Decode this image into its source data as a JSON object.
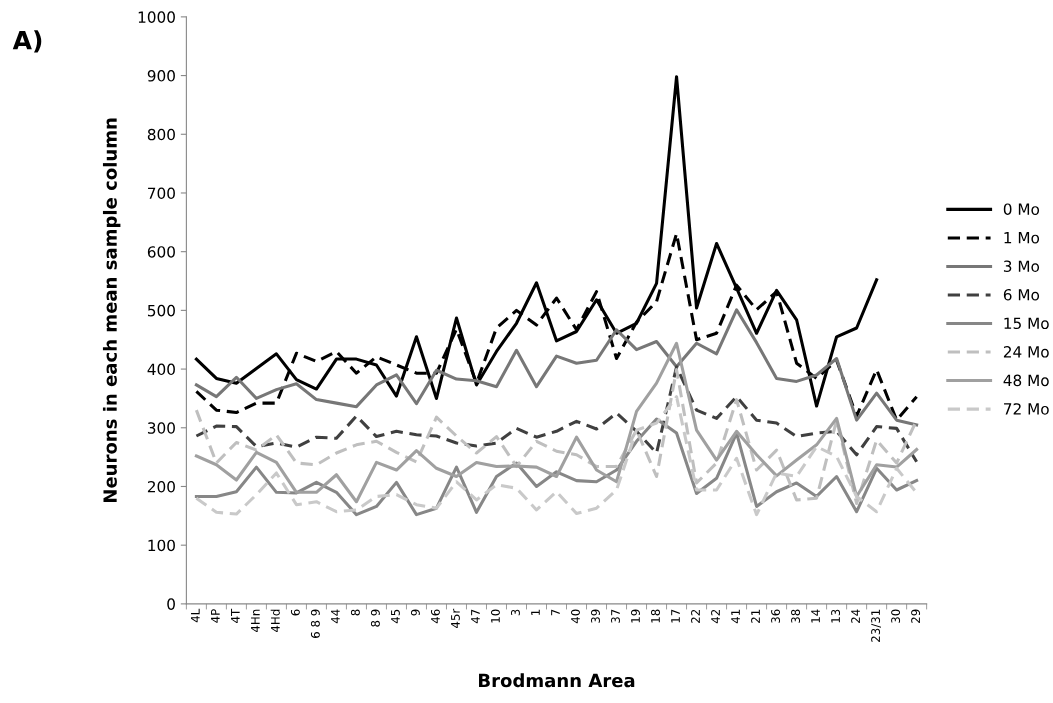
{
  "chart_data": {
    "type": "line",
    "xlabel": "Brodmann Area",
    "ylabel": "Neurons in each mean sample column",
    "annotations": [
      "A)"
    ],
    "categories": [
      "4L",
      "4P",
      "4T",
      "4Hn",
      "4Hd",
      "6",
      "6 8 9",
      "44",
      "8",
      "8 9",
      "45",
      "9",
      "46",
      "45r",
      "47",
      "10",
      "3",
      "1",
      "7",
      "40",
      "39",
      "37",
      "19",
      "18",
      "17",
      "22",
      "42",
      "41",
      "21",
      "36",
      "38",
      "14",
      "13",
      "24",
      "23/31",
      "30",
      "29"
    ],
    "ylim": [
      0,
      1000
    ],
    "yticks": [
      0,
      100,
      200,
      300,
      400,
      500,
      600,
      700,
      800,
      900,
      1000
    ],
    "grid": false,
    "legend": "right",
    "marker": "none",
    "series": [
      {
        "name": "0 Mo",
        "color": "#000000",
        "line_style": "solid",
        "values": [
          417,
          384,
          376,
          401,
          426,
          382,
          366,
          417,
          417,
          407,
          354,
          455,
          350,
          487,
          373,
          430,
          478,
          547,
          448,
          464,
          518,
          461,
          478,
          546,
          898,
          504,
          614,
          538,
          461,
          534,
          484,
          337,
          455,
          470,
          552,
          null,
          null
        ]
      },
      {
        "name": "1 Mo",
        "color": "#000000",
        "line_style": "dashed",
        "values": [
          362,
          330,
          326,
          342,
          342,
          427,
          413,
          430,
          393,
          421,
          407,
          393,
          393,
          468,
          376,
          470,
          500,
          475,
          521,
          467,
          532,
          418,
          480,
          515,
          631,
          450,
          461,
          543,
          501,
          532,
          410,
          384,
          415,
          320,
          399,
          313,
          353
        ]
      },
      {
        "name": "3 Mo",
        "color": "#777777",
        "line_style": "solid",
        "values": [
          373,
          353,
          386,
          350,
          365,
          375,
          348,
          342,
          336,
          373,
          390,
          341,
          398,
          383,
          380,
          370,
          432,
          370,
          422,
          410,
          415,
          467,
          433,
          447,
          404,
          444,
          426,
          501,
          445,
          384,
          379,
          390,
          418,
          313,
          359,
          313,
          305
        ]
      },
      {
        "name": "6 Mo",
        "color": "#404040",
        "line_style": "dashed",
        "values": [
          286,
          303,
          302,
          268,
          274,
          267,
          284,
          282,
          320,
          285,
          294,
          288,
          286,
          274,
          269,
          274,
          299,
          284,
          294,
          311,
          298,
          325,
          294,
          257,
          404,
          330,
          316,
          353,
          313,
          308,
          285,
          291,
          294,
          254,
          302,
          299,
          242
        ]
      },
      {
        "name": "15 Mo",
        "color": "#878787",
        "line_style": "solid",
        "values": [
          183,
          183,
          191,
          233,
          190,
          189,
          207,
          190,
          152,
          166,
          207,
          152,
          163,
          233,
          156,
          217,
          240,
          200,
          225,
          210,
          208,
          228,
          277,
          315,
          291,
          188,
          214,
          291,
          166,
          191,
          206,
          183,
          217,
          157,
          231,
          194,
          210
        ]
      },
      {
        "name": "24 Mo",
        "color": "#bfbfbf",
        "line_style": "dashed",
        "values": [
          330,
          240,
          275,
          262,
          288,
          240,
          237,
          257,
          271,
          277,
          258,
          242,
          318,
          286,
          257,
          285,
          234,
          277,
          260,
          254,
          234,
          234,
          296,
          217,
          399,
          206,
          240,
          348,
          228,
          262,
          177,
          180,
          313,
          171,
          279,
          240,
          313
        ]
      },
      {
        "name": "48 Mo",
        "color": "#a0a0a0",
        "line_style": "solid",
        "values": [
          252,
          237,
          211,
          258,
          241,
          190,
          190,
          220,
          174,
          241,
          228,
          261,
          231,
          217,
          241,
          234,
          235,
          233,
          217,
          284,
          228,
          208,
          328,
          376,
          444,
          296,
          245,
          294,
          254,
          218,
          245,
          271,
          316,
          183,
          237,
          233,
          263
        ]
      },
      {
        "name": "72 Mo",
        "color": "#c9c9c9",
        "line_style": "dashed",
        "values": [
          180,
          156,
          153,
          186,
          223,
          169,
          174,
          157,
          160,
          183,
          186,
          169,
          163,
          208,
          177,
          203,
          197,
          160,
          191,
          154,
          163,
          194,
          296,
          308,
          353,
          194,
          194,
          248,
          152,
          223,
          217,
          268,
          251,
          183,
          157,
          231,
          189
        ]
      }
    ]
  }
}
